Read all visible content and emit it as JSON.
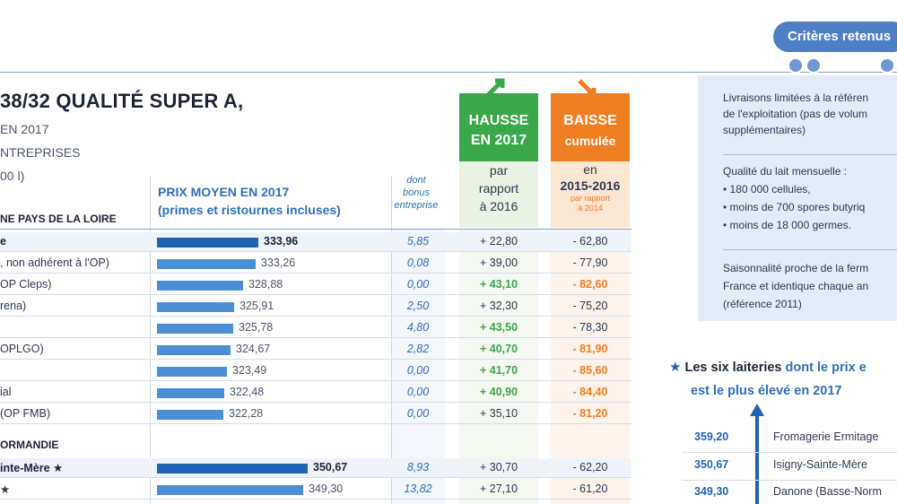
{
  "header": {
    "title": "38/32 QUALITÉ SUPER A,",
    "sub1": "EN 2017",
    "sub2": "NTREPRISES",
    "sub3": "00 l)"
  },
  "columns": {
    "region_pdl": "NE PAYS DE LA LOIRE",
    "prix_l1": "PRIX MOYEN EN 2017",
    "prix_l2": "(primes et ristournes incluses)",
    "bonus_l1": "dont",
    "bonus_l2": "bonus",
    "bonus_l3": "entreprise",
    "hausse_l1": "HAUSSE",
    "hausse_l2": "EN 2017",
    "hausse_l3": "par",
    "hausse_l4": "rapport",
    "hausse_l5": "à 2016",
    "baisse_l1": "BAISSE",
    "baisse_l2": "cumulée",
    "baisse_l3": "en",
    "baisse_l4": "2015-2016",
    "baisse_l5": "par rapport",
    "baisse_l6": "à 2014",
    "region_normandie": "ORMANDIE"
  },
  "chart_data": {
    "type": "table",
    "title": "38/32 QUALITÉ SUPER A,",
    "value_column": "PRIX MOYEN EN 2017 (primes et ristournes incluses)",
    "bar_range": [
      300,
      350.67
    ],
    "rows": [
      {
        "label": "e",
        "prix": "333,96",
        "prix_num": 333.96,
        "bonus": "5,85",
        "hausse": "+ 22,80",
        "baisse": "- 62,80",
        "bold": true,
        "hausse_hl": false,
        "baisse_hl": false
      },
      {
        "label": ", non adhérent à l'OP)",
        "prix": "333,26",
        "prix_num": 333.26,
        "bonus": "0,08",
        "hausse": "+ 39,00",
        "baisse": "- 77,90",
        "bold": false,
        "hausse_hl": false,
        "baisse_hl": false
      },
      {
        "label": "OP Cleps)",
        "prix": "328,88",
        "prix_num": 328.88,
        "bonus": "0,00",
        "hausse": "+ 43,10",
        "baisse": "- 82,60",
        "bold": false,
        "hausse_hl": true,
        "baisse_hl": true
      },
      {
        "label": "rena)",
        "prix": "325,91",
        "prix_num": 325.91,
        "bonus": "2,50",
        "hausse": "+ 32,30",
        "baisse": "- 75,20",
        "bold": false,
        "hausse_hl": false,
        "baisse_hl": false
      },
      {
        "label": "",
        "prix": "325,78",
        "prix_num": 325.78,
        "bonus": "4,80",
        "hausse": "+ 43,50",
        "baisse": "- 78,30",
        "bold": false,
        "hausse_hl": true,
        "baisse_hl": false
      },
      {
        "label": "OPLGO)",
        "prix": "324,67",
        "prix_num": 324.67,
        "bonus": "2,82",
        "hausse": "+ 40,70",
        "baisse": "- 81,90",
        "bold": false,
        "hausse_hl": true,
        "baisse_hl": true
      },
      {
        "label": "",
        "prix": "323,49",
        "prix_num": 323.49,
        "bonus": "0,00",
        "hausse": "+ 41,70",
        "baisse": "- 85,60",
        "bold": false,
        "hausse_hl": true,
        "baisse_hl": true
      },
      {
        "label": "ial",
        "prix": "322,48",
        "prix_num": 322.48,
        "bonus": "0,00",
        "hausse": "+ 40,90",
        "baisse": "- 84,40",
        "bold": false,
        "hausse_hl": true,
        "baisse_hl": true
      },
      {
        "label": "(OP FMB)",
        "prix": "322,28",
        "prix_num": 322.28,
        "bonus": "0,00",
        "hausse": "+ 35,10",
        "baisse": "- 81,20",
        "bold": false,
        "hausse_hl": false,
        "baisse_hl": true
      },
      {
        "label": "inte-Mère ★",
        "prix": "350,67",
        "prix_num": 350.67,
        "bonus": "8,93",
        "hausse": "+ 30,70",
        "baisse": "- 62,20",
        "bold": true,
        "hausse_hl": false,
        "baisse_hl": false
      },
      {
        "label": "★",
        "prix": "349,30",
        "prix_num": 349.3,
        "bonus": "13,82",
        "hausse": "+ 27,10",
        "baisse": "- 61,20",
        "bold": false,
        "hausse_hl": false,
        "baisse_hl": false
      }
    ]
  },
  "criteria": {
    "pill": "Critères retenus",
    "c1a": "Livraisons limitées à la référen",
    "c1b": "de l'exploitation (pas de volum",
    "c1c": "supplémentaires)",
    "c2a": "Qualité du lait mensuelle :",
    "c2b": "• 180 000 cellules,",
    "c2c": "• moins de 700 spores butyriq",
    "c2d": "• moins de 18 000 germes.",
    "c3a": "Saisonnalité proche de la ferm",
    "c3b": "France et identique chaque an",
    "c3c": "(référence 2011)"
  },
  "six": {
    "star": "★",
    "line1_a": "Les six laiteries",
    "line1_b": "dont le prix e",
    "line2": "est le plus élevé en 2017",
    "items": [
      {
        "price": "359,20",
        "name": "Fromagerie Ermitage"
      },
      {
        "price": "350,67",
        "name": "Isigny-Sainte-Mère"
      },
      {
        "price": "349,30",
        "name": "Danone (Basse-Norm"
      }
    ]
  },
  "colors": {
    "bar": "#4a8fd6",
    "bar_bold": "#1f63b5",
    "green": "#3aa84a",
    "orange": "#ef7d22"
  }
}
